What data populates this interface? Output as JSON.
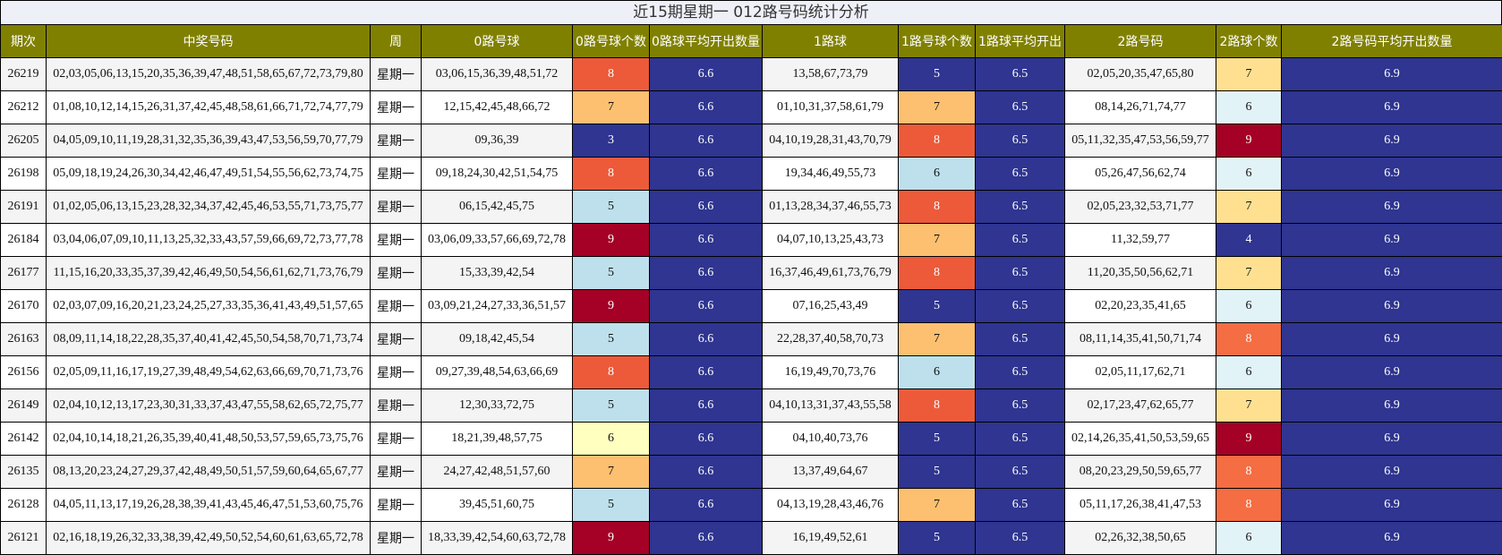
{
  "title": "近15期星期一 012路号码统计分析",
  "headers": [
    "期次",
    "中奖号码",
    "周",
    "0路号球",
    "0路号球个数",
    "0路球平均开出数量",
    "1路球",
    "1路号球个数",
    "1路球平均开出",
    "2路号码",
    "2路球个数",
    "2路号码平均开出数量"
  ],
  "rows": [
    [
      "26219",
      "02,03,05,06,13,15,20,35,36,39,47,48,51,58,65,67,72,73,79,80",
      "星期一",
      "03,06,15,36,39,48,51,72",
      "8",
      "6.6",
      "13,58,67,73,79",
      "5",
      "6.5",
      "02,05,20,35,47,65,80",
      "7",
      "6.9"
    ],
    [
      "26212",
      "01,08,10,12,14,15,26,31,37,42,45,48,58,61,66,71,72,74,77,79",
      "星期一",
      "12,15,42,45,48,66,72",
      "7",
      "6.6",
      "01,10,31,37,58,61,79",
      "7",
      "6.5",
      "08,14,26,71,74,77",
      "6",
      "6.9"
    ],
    [
      "26205",
      "04,05,09,10,11,19,28,31,32,35,36,39,43,47,53,56,59,70,77,79",
      "星期一",
      "09,36,39",
      "3",
      "6.6",
      "04,10,19,28,31,43,70,79",
      "8",
      "6.5",
      "05,11,32,35,47,53,56,59,77",
      "9",
      "6.9"
    ],
    [
      "26198",
      "05,09,18,19,24,26,30,34,42,46,47,49,51,54,55,56,62,73,74,75",
      "星期一",
      "09,18,24,30,42,51,54,75",
      "8",
      "6.6",
      "19,34,46,49,55,73",
      "6",
      "6.5",
      "05,26,47,56,62,74",
      "6",
      "6.9"
    ],
    [
      "26191",
      "01,02,05,06,13,15,23,28,32,34,37,42,45,46,53,55,71,73,75,77",
      "星期一",
      "06,15,42,45,75",
      "5",
      "6.6",
      "01,13,28,34,37,46,55,73",
      "8",
      "6.5",
      "02,05,23,32,53,71,77",
      "7",
      "6.9"
    ],
    [
      "26184",
      "03,04,06,07,09,10,11,13,25,32,33,43,57,59,66,69,72,73,77,78",
      "星期一",
      "03,06,09,33,57,66,69,72,78",
      "9",
      "6.6",
      "04,07,10,13,25,43,73",
      "7",
      "6.5",
      "11,32,59,77",
      "4",
      "6.9"
    ],
    [
      "26177",
      "11,15,16,20,33,35,37,39,42,46,49,50,54,56,61,62,71,73,76,79",
      "星期一",
      "15,33,39,42,54",
      "5",
      "6.6",
      "16,37,46,49,61,73,76,79",
      "8",
      "6.5",
      "11,20,35,50,56,62,71",
      "7",
      "6.9"
    ],
    [
      "26170",
      "02,03,07,09,16,20,21,23,24,25,27,33,35,36,41,43,49,51,57,65",
      "星期一",
      "03,09,21,24,27,33,36,51,57",
      "9",
      "6.6",
      "07,16,25,43,49",
      "5",
      "6.5",
      "02,20,23,35,41,65",
      "6",
      "6.9"
    ],
    [
      "26163",
      "08,09,11,14,18,22,28,35,37,40,41,42,45,50,54,58,70,71,73,74",
      "星期一",
      "09,18,42,45,54",
      "5",
      "6.6",
      "22,28,37,40,58,70,73",
      "7",
      "6.5",
      "08,11,14,35,41,50,71,74",
      "8",
      "6.9"
    ],
    [
      "26156",
      "02,05,09,11,16,17,19,27,39,48,49,54,62,63,66,69,70,71,73,76",
      "星期一",
      "09,27,39,48,54,63,66,69",
      "8",
      "6.6",
      "16,19,49,70,73,76",
      "6",
      "6.5",
      "02,05,11,17,62,71",
      "6",
      "6.9"
    ],
    [
      "26149",
      "02,04,10,12,13,17,23,30,31,33,37,43,47,55,58,62,65,72,75,77",
      "星期一",
      "12,30,33,72,75",
      "5",
      "6.6",
      "04,10,13,31,37,43,55,58",
      "8",
      "6.5",
      "02,17,23,47,62,65,77",
      "7",
      "6.9"
    ],
    [
      "26142",
      "02,04,10,14,18,21,26,35,39,40,41,48,50,53,57,59,65,73,75,76",
      "星期一",
      "18,21,39,48,57,75",
      "6",
      "6.6",
      "04,10,40,73,76",
      "5",
      "6.5",
      "02,14,26,35,41,50,53,59,65",
      "9",
      "6.9"
    ],
    [
      "26135",
      "08,13,20,23,24,27,29,37,42,48,49,50,51,57,59,60,64,65,67,77",
      "星期一",
      "24,27,42,48,51,57,60",
      "7",
      "6.6",
      "13,37,49,64,67",
      "5",
      "6.5",
      "08,20,23,29,50,59,65,77",
      "8",
      "6.9"
    ],
    [
      "26128",
      "04,05,11,13,17,19,26,28,38,39,41,43,45,46,47,51,53,60,75,76",
      "星期一",
      "39,45,51,60,75",
      "5",
      "6.6",
      "04,13,19,28,43,46,76",
      "7",
      "6.5",
      "05,11,17,26,38,41,47,53",
      "8",
      "6.9"
    ],
    [
      "26121",
      "02,16,18,19,26,32,33,38,39,42,49,50,52,54,60,61,63,65,72,78",
      "星期一",
      "18,33,39,42,54,60,63,72,78",
      "9",
      "6.6",
      "16,19,49,52,61",
      "5",
      "6.5",
      "02,26,32,38,50,65",
      "6",
      "6.9"
    ]
  ],
  "colors": {
    "header_bg": "#808000",
    "header_text": "#ffffff",
    "avg_bg": "#2f3590",
    "count_scale": {
      "3": "#2f3590",
      "4": "#2f3590",
      "5": "#bde0ec",
      "6": "#ffffc0",
      "7": "#fcc070",
      "8": "#ec5a3a",
      "9": "#a50026"
    }
  }
}
